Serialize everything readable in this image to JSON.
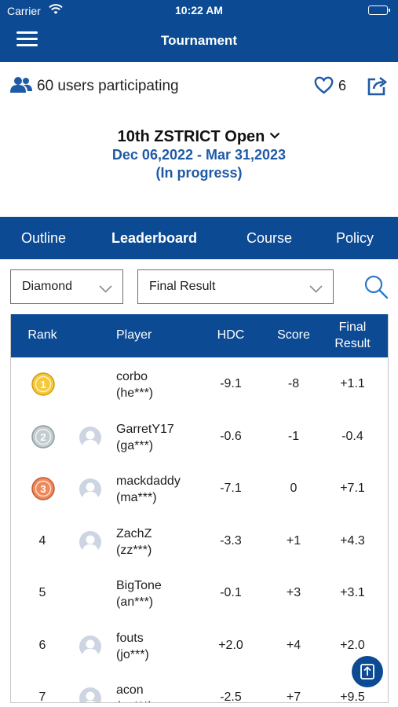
{
  "status_bar": {
    "carrier": "Carrier",
    "time": "10:22 AM"
  },
  "header": {
    "title": "Tournament",
    "menu_icon": "hamburger-menu-icon"
  },
  "info": {
    "participants": "60 users participating",
    "likes": "6"
  },
  "tournament": {
    "name": "10th ZSTRICT Open",
    "dates": "Dec 06,2022 - Mar 31,2023",
    "status": "(In progress)"
  },
  "tabs": [
    "Outline",
    "Leaderboard",
    "Course",
    "Policy"
  ],
  "active_tab": "Leaderboard",
  "filters": {
    "division": "Diamond",
    "result_type": "Final Result"
  },
  "table": {
    "headers": {
      "rank": "Rank",
      "player": "Player",
      "hdc": "HDC",
      "score": "Score",
      "final_1": "Final",
      "final_2": "Result"
    },
    "rows": [
      {
        "rank": "",
        "medal": "gold-medal-icon",
        "medal_num": "1",
        "avatar": false,
        "name": "corbo",
        "id": "(he***)",
        "hdc": "-9.1",
        "score": "-8",
        "final": "+1.1"
      },
      {
        "rank": "",
        "medal": "silver-medal-icon",
        "medal_num": "2",
        "avatar": true,
        "name": "GarretY17",
        "id": "(ga***)",
        "hdc": "-0.6",
        "score": "-1",
        "final": "-0.4"
      },
      {
        "rank": "",
        "medal": "bronze-medal-icon",
        "medal_num": "3",
        "avatar": true,
        "name": "mackdaddy",
        "id": "(ma***)",
        "hdc": "-7.1",
        "score": "0",
        "final": "+7.1"
      },
      {
        "rank": "4",
        "avatar": true,
        "name": "ZachZ",
        "id": "(zz***)",
        "hdc": "-3.3",
        "score": "+1",
        "final": "+4.3"
      },
      {
        "rank": "5",
        "avatar": false,
        "name": "BigTone",
        "id": "(an***)",
        "hdc": "-0.1",
        "score": "+3",
        "final": "+3.1"
      },
      {
        "rank": "6",
        "avatar": true,
        "name": "fouts",
        "id": "(jo***)",
        "hdc": "+2.0",
        "score": "+4",
        "final": "+2.0"
      },
      {
        "rank": "7",
        "avatar": true,
        "name": "acon",
        "id": "(ac***)",
        "hdc": "-2.5",
        "score": "+7",
        "final": "+9.5"
      }
    ]
  },
  "colors": {
    "brand": "#0c4a93",
    "link": "#1f5aa6",
    "gold": "#f3c232",
    "silver": "#a8b2b8",
    "bronze": "#e0784a"
  }
}
